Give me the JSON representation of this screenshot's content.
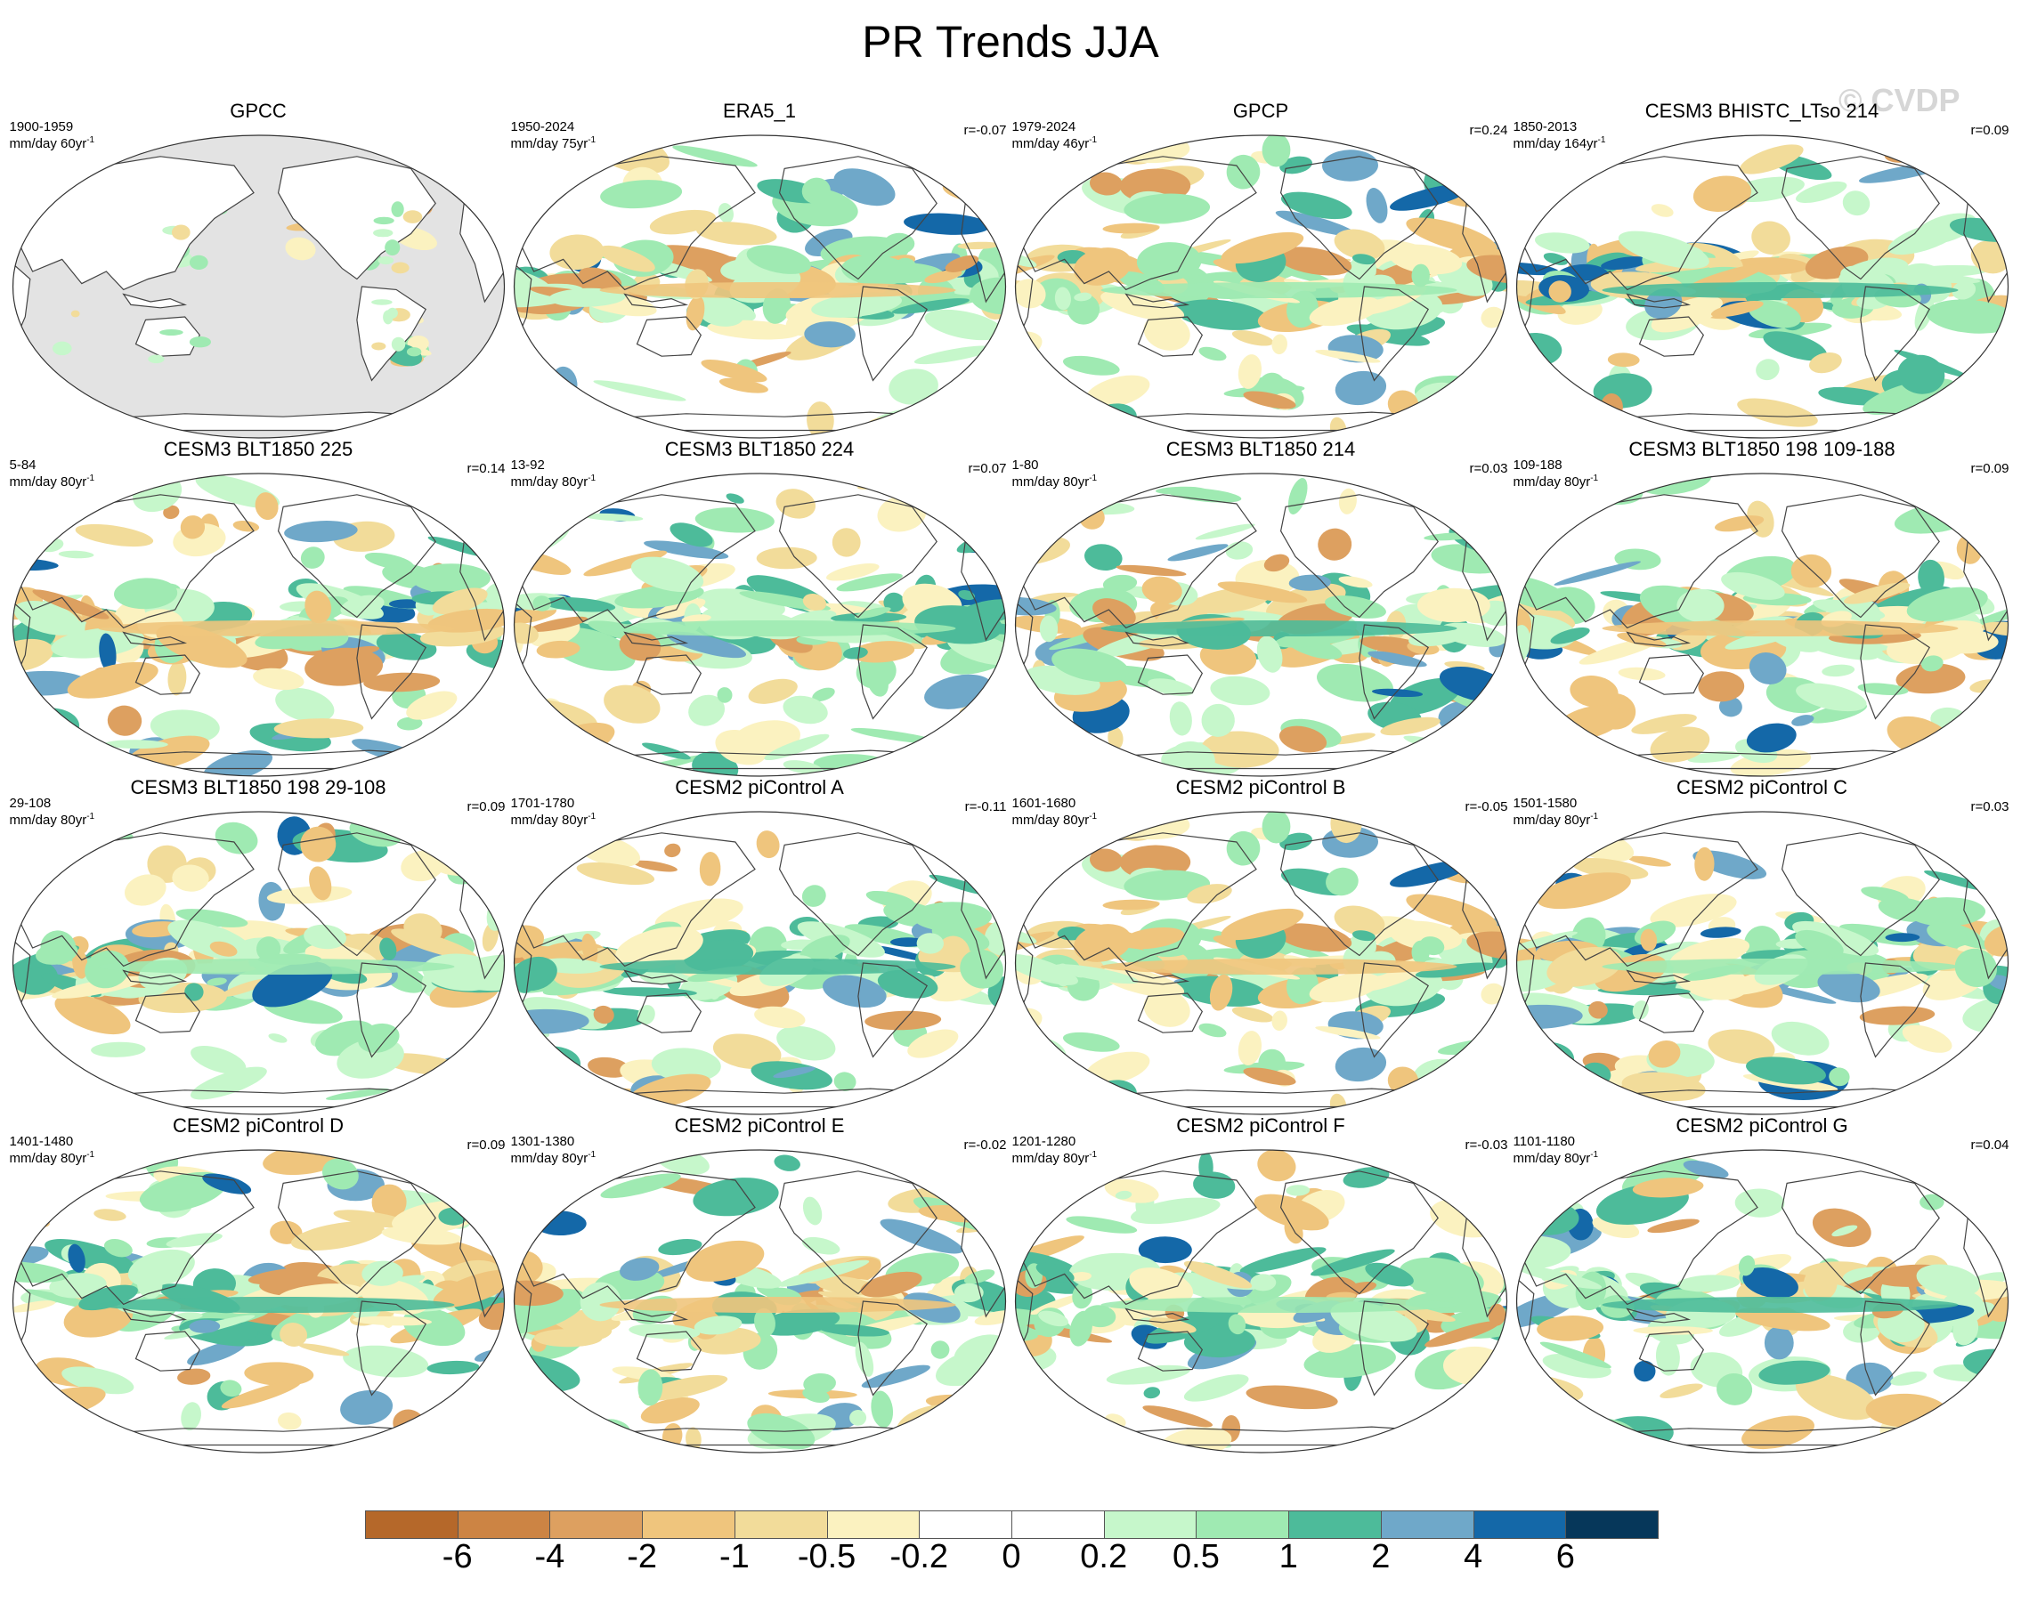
{
  "title": "PR Trends JJA",
  "watermark": "© CVDP",
  "panels": [
    {
      "title": "GPCC",
      "period": "1900-1959",
      "units": "mm/day 60yr",
      "corr": "",
      "masked": true,
      "pattern": "gpcc"
    },
    {
      "title": "ERA5_1",
      "period": "1950-2024",
      "units": "mm/day 75yr",
      "corr": "r=-0.07",
      "masked": false,
      "pattern": "era5"
    },
    {
      "title": "GPCP",
      "period": "1979-2024",
      "units": "mm/day 46yr",
      "corr": "r=0.24",
      "masked": false,
      "pattern": "gpcp"
    },
    {
      "title": "CESM3 BHISTC_LTso 214",
      "period": "1850-2013",
      "units": "mm/day 164yr",
      "corr": "r=0.09",
      "masked": false,
      "pattern": "hist"
    },
    {
      "title": "CESM3 BLT1850 225",
      "period": "5-84",
      "units": "mm/day 80yr",
      "corr": "r=0.14",
      "masked": false,
      "pattern": "m1"
    },
    {
      "title": "CESM3 BLT1850 224",
      "period": "13-92",
      "units": "mm/day 80yr",
      "corr": "r=0.07",
      "masked": false,
      "pattern": "m2"
    },
    {
      "title": "CESM3 BLT1850 214",
      "period": "1-80",
      "units": "mm/day 80yr",
      "corr": "r=0.03",
      "masked": false,
      "pattern": "m3"
    },
    {
      "title": "CESM3 BLT1850 198 109-188",
      "period": "109-188",
      "units": "mm/day 80yr",
      "corr": "r=0.09",
      "masked": false,
      "pattern": "m4"
    },
    {
      "title": "CESM3 BLT1850 198 29-108",
      "period": "29-108",
      "units": "mm/day 80yr",
      "corr": "r=0.09",
      "masked": false,
      "pattern": "m5"
    },
    {
      "title": "CESM2 piControl A",
      "period": "1701-1780",
      "units": "mm/day 80yr",
      "corr": "r=-0.11",
      "masked": false,
      "pattern": "m6"
    },
    {
      "title": "CESM2 piControl B",
      "period": "1601-1680",
      "units": "mm/day 80yr",
      "corr": "r=-0.05",
      "masked": false,
      "pattern": "m7"
    },
    {
      "title": "CESM2 piControl C",
      "period": "1501-1580",
      "units": "mm/day 80yr",
      "corr": "r=0.03",
      "masked": false,
      "pattern": "m8"
    },
    {
      "title": "CESM2 piControl D",
      "period": "1401-1480",
      "units": "mm/day 80yr",
      "corr": "r=0.09",
      "masked": false,
      "pattern": "m9"
    },
    {
      "title": "CESM2 piControl E",
      "period": "1301-1380",
      "units": "mm/day 80yr",
      "corr": "r=-0.02",
      "masked": false,
      "pattern": "m10"
    },
    {
      "title": "CESM2 piControl F",
      "period": "1201-1280",
      "units": "mm/day 80yr",
      "corr": "r=-0.03",
      "masked": false,
      "pattern": "m11"
    },
    {
      "title": "CESM2 piControl G",
      "period": "1101-1180",
      "units": "mm/day 80yr",
      "corr": "r=0.04",
      "masked": false,
      "pattern": "m12"
    }
  ],
  "colorbar": {
    "colors": [
      "#b5682a",
      "#cc8444",
      "#dda060",
      "#efc57d",
      "#f2dc9a",
      "#fbf2c0",
      "#ffffff",
      "#ffffff",
      "#c6f7cb",
      "#9feab2",
      "#4dbb9a",
      "#6fa8c9",
      "#1468a8",
      "#06375a"
    ],
    "labels": [
      "-6",
      "-4",
      "-2",
      "-1",
      "-0.5",
      "-0.2",
      "0",
      "0.2",
      "0.5",
      "1",
      "2",
      "4",
      "6"
    ]
  }
}
